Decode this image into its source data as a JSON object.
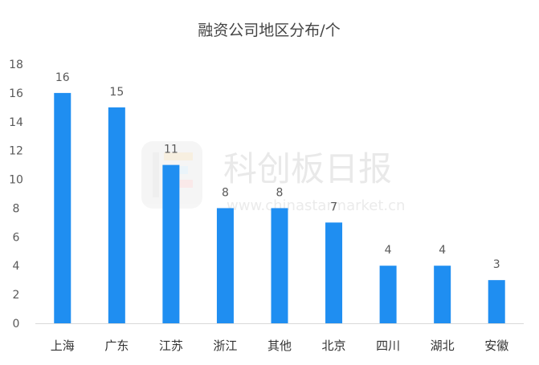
{
  "chart_data": {
    "type": "bar",
    "title": "融资公司地区分布/个",
    "categories": [
      "上海",
      "广东",
      "江苏",
      "浙江",
      "其他",
      "北京",
      "四川",
      "湖北",
      "安徽"
    ],
    "values": [
      16,
      15,
      11,
      8,
      8,
      7,
      4,
      4,
      3
    ],
    "ylim": [
      0,
      18
    ],
    "yticks": [
      0,
      2,
      4,
      6,
      8,
      10,
      12,
      14,
      16,
      18
    ],
    "grid": false,
    "bar_color": "#1f8ef1",
    "data_labels": true
  },
  "watermark": {
    "text": "科创板日报",
    "url": "www.chinastarmarket.cn"
  }
}
